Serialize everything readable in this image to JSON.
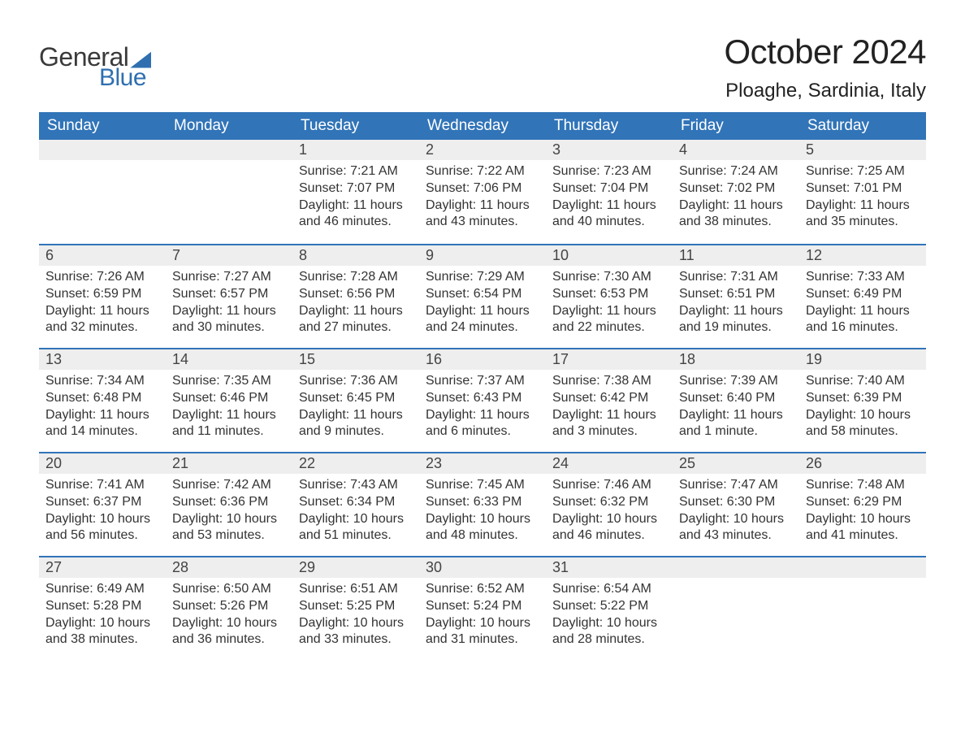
{
  "logo": {
    "word1": "General",
    "word2": "Blue"
  },
  "title": "October 2024",
  "location": "Ploaghe, Sardinia, Italy",
  "colors": {
    "header_bg": "#3174b8",
    "header_text": "#ffffff",
    "daynum_bg": "#eeeeee",
    "border": "#3174b8",
    "body_text": "#333333",
    "logo_blue": "#2f6fb0",
    "logo_grey": "#3a3a3a",
    "page_bg": "#ffffff"
  },
  "weekdays": [
    "Sunday",
    "Monday",
    "Tuesday",
    "Wednesday",
    "Thursday",
    "Friday",
    "Saturday"
  ],
  "weeks": [
    [
      null,
      null,
      {
        "n": "1",
        "sunrise": "7:21 AM",
        "sunset": "7:07 PM",
        "daylight": "11 hours and 46 minutes."
      },
      {
        "n": "2",
        "sunrise": "7:22 AM",
        "sunset": "7:06 PM",
        "daylight": "11 hours and 43 minutes."
      },
      {
        "n": "3",
        "sunrise": "7:23 AM",
        "sunset": "7:04 PM",
        "daylight": "11 hours and 40 minutes."
      },
      {
        "n": "4",
        "sunrise": "7:24 AM",
        "sunset": "7:02 PM",
        "daylight": "11 hours and 38 minutes."
      },
      {
        "n": "5",
        "sunrise": "7:25 AM",
        "sunset": "7:01 PM",
        "daylight": "11 hours and 35 minutes."
      }
    ],
    [
      {
        "n": "6",
        "sunrise": "7:26 AM",
        "sunset": "6:59 PM",
        "daylight": "11 hours and 32 minutes."
      },
      {
        "n": "7",
        "sunrise": "7:27 AM",
        "sunset": "6:57 PM",
        "daylight": "11 hours and 30 minutes."
      },
      {
        "n": "8",
        "sunrise": "7:28 AM",
        "sunset": "6:56 PM",
        "daylight": "11 hours and 27 minutes."
      },
      {
        "n": "9",
        "sunrise": "7:29 AM",
        "sunset": "6:54 PM",
        "daylight": "11 hours and 24 minutes."
      },
      {
        "n": "10",
        "sunrise": "7:30 AM",
        "sunset": "6:53 PM",
        "daylight": "11 hours and 22 minutes."
      },
      {
        "n": "11",
        "sunrise": "7:31 AM",
        "sunset": "6:51 PM",
        "daylight": "11 hours and 19 minutes."
      },
      {
        "n": "12",
        "sunrise": "7:33 AM",
        "sunset": "6:49 PM",
        "daylight": "11 hours and 16 minutes."
      }
    ],
    [
      {
        "n": "13",
        "sunrise": "7:34 AM",
        "sunset": "6:48 PM",
        "daylight": "11 hours and 14 minutes."
      },
      {
        "n": "14",
        "sunrise": "7:35 AM",
        "sunset": "6:46 PM",
        "daylight": "11 hours and 11 minutes."
      },
      {
        "n": "15",
        "sunrise": "7:36 AM",
        "sunset": "6:45 PM",
        "daylight": "11 hours and 9 minutes."
      },
      {
        "n": "16",
        "sunrise": "7:37 AM",
        "sunset": "6:43 PM",
        "daylight": "11 hours and 6 minutes."
      },
      {
        "n": "17",
        "sunrise": "7:38 AM",
        "sunset": "6:42 PM",
        "daylight": "11 hours and 3 minutes."
      },
      {
        "n": "18",
        "sunrise": "7:39 AM",
        "sunset": "6:40 PM",
        "daylight": "11 hours and 1 minute."
      },
      {
        "n": "19",
        "sunrise": "7:40 AM",
        "sunset": "6:39 PM",
        "daylight": "10 hours and 58 minutes."
      }
    ],
    [
      {
        "n": "20",
        "sunrise": "7:41 AM",
        "sunset": "6:37 PM",
        "daylight": "10 hours and 56 minutes."
      },
      {
        "n": "21",
        "sunrise": "7:42 AM",
        "sunset": "6:36 PM",
        "daylight": "10 hours and 53 minutes."
      },
      {
        "n": "22",
        "sunrise": "7:43 AM",
        "sunset": "6:34 PM",
        "daylight": "10 hours and 51 minutes."
      },
      {
        "n": "23",
        "sunrise": "7:45 AM",
        "sunset": "6:33 PM",
        "daylight": "10 hours and 48 minutes."
      },
      {
        "n": "24",
        "sunrise": "7:46 AM",
        "sunset": "6:32 PM",
        "daylight": "10 hours and 46 minutes."
      },
      {
        "n": "25",
        "sunrise": "7:47 AM",
        "sunset": "6:30 PM",
        "daylight": "10 hours and 43 minutes."
      },
      {
        "n": "26",
        "sunrise": "7:48 AM",
        "sunset": "6:29 PM",
        "daylight": "10 hours and 41 minutes."
      }
    ],
    [
      {
        "n": "27",
        "sunrise": "6:49 AM",
        "sunset": "5:28 PM",
        "daylight": "10 hours and 38 minutes."
      },
      {
        "n": "28",
        "sunrise": "6:50 AM",
        "sunset": "5:26 PM",
        "daylight": "10 hours and 36 minutes."
      },
      {
        "n": "29",
        "sunrise": "6:51 AM",
        "sunset": "5:25 PM",
        "daylight": "10 hours and 33 minutes."
      },
      {
        "n": "30",
        "sunrise": "6:52 AM",
        "sunset": "5:24 PM",
        "daylight": "10 hours and 31 minutes."
      },
      {
        "n": "31",
        "sunrise": "6:54 AM",
        "sunset": "5:22 PM",
        "daylight": "10 hours and 28 minutes."
      },
      null,
      null
    ]
  ],
  "labels": {
    "sunrise": "Sunrise:",
    "sunset": "Sunset:",
    "daylight": "Daylight:"
  }
}
